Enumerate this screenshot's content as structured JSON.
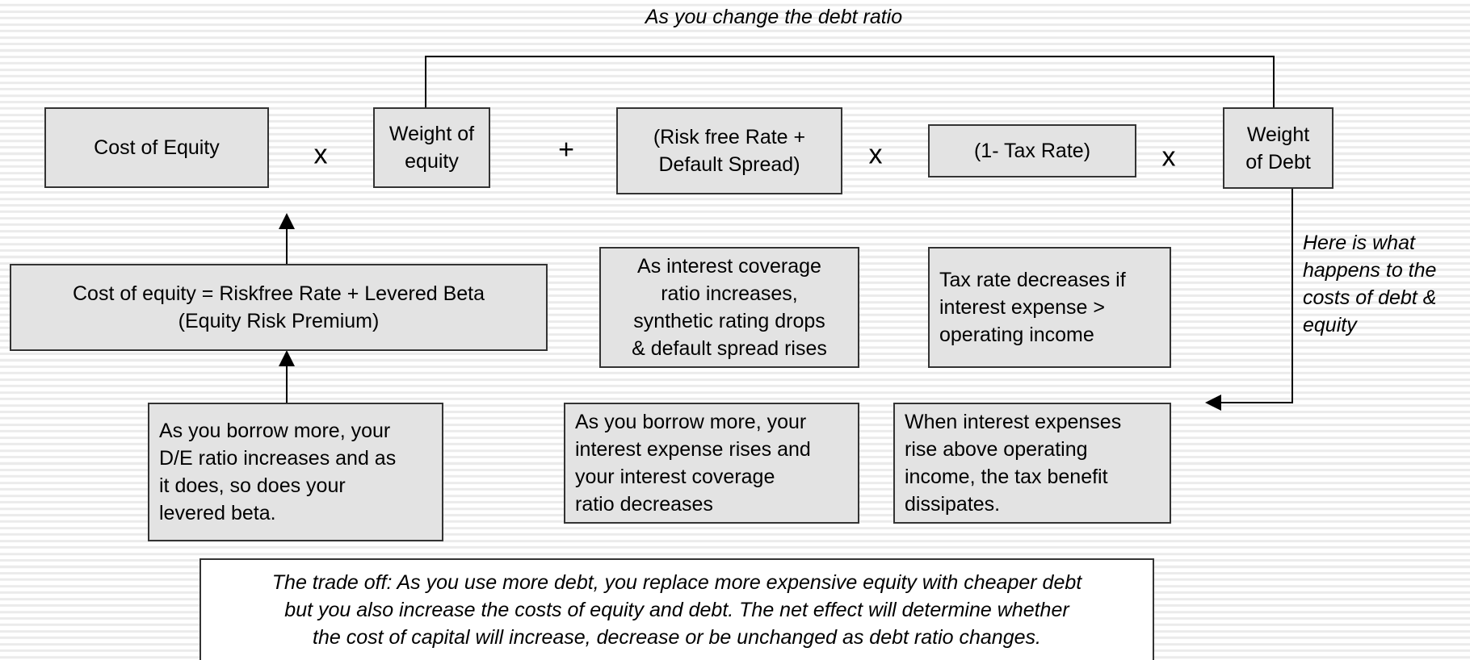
{
  "title": "As you change the debt ratio",
  "formula": {
    "cost_of_equity": [
      "Cost of Equity"
    ],
    "weight_of_equity": [
      "Weight of",
      "equity"
    ],
    "pre_tax_cost_of_debt": [
      "(Risk free Rate +",
      "Default Spread)"
    ],
    "tax_factor": [
      "(1- Tax Rate)"
    ],
    "weight_of_debt": [
      "Weight",
      "of Debt"
    ],
    "operators": [
      "x",
      "+",
      "x",
      "x"
    ]
  },
  "cost_of_equity_formula": [
    "Cost of equity = Riskfree Rate + Levered Beta",
    "(Equity Risk Premium)"
  ],
  "levered_beta_note": [
    "As you borrow more, your",
    "D/E ratio increases and as",
    "it does, so does your",
    "levered beta."
  ],
  "default_spread_note": [
    "As interest coverage",
    "ratio increases,",
    "synthetic rating drops",
    "& default spread rises"
  ],
  "coverage_note": [
    "As you borrow more, your",
    "interest expense rises and",
    "your interest coverage",
    "ratio decreases"
  ],
  "tax_rate_note": [
    "Tax rate decreases if",
    "interest expense >",
    "operating income"
  ],
  "tax_benefit_note": [
    "When interest expenses",
    "rise above operating",
    "income, the tax benefit",
    "dissipates."
  ],
  "side_note": [
    "Here is what",
    "happens to the",
    "costs of debt &",
    "equity"
  ],
  "trade_off": [
    "The trade off: As you use more debt, you replace more expensive equity with cheaper debt",
    "but you also increase the costs of equity and debt. The net effect will determine whether",
    "the cost of capital will increase, decrease or be unchanged as debt ratio changes."
  ]
}
